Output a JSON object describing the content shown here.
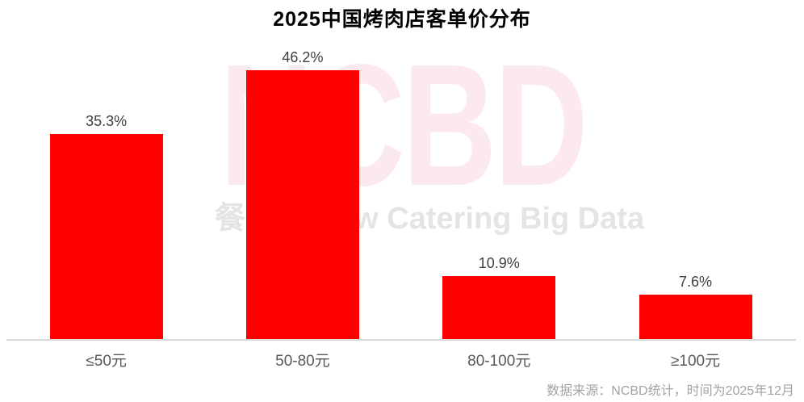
{
  "title": "2025中国烤肉店客单价分布",
  "watermark": {
    "brand": "NCBD",
    "subtitle": "餐宝典 New Catering Big Data"
  },
  "source_note": "数据来源：NCBD统计，时间为2025年12月",
  "colors": {
    "bar": "#fe0000",
    "title_text": "#000000",
    "value_label": "#404040",
    "category_label": "#595959",
    "axis_line": "#d9d9d9",
    "source_text": "#a3a3a3",
    "watermark_pink": "#fce9ed",
    "watermark_gray": "#e4e4e4",
    "background": "#ffffff"
  },
  "chart_data": {
    "type": "bar",
    "title": "2025中国烤肉店客单价分布",
    "categories": [
      "≤50元",
      "50-80元",
      "80-100元",
      "≥100元"
    ],
    "values": [
      35.3,
      46.2,
      10.9,
      7.6
    ],
    "value_labels": [
      "35.3%",
      "46.2%",
      "10.9%",
      "7.6%"
    ],
    "unit": "%",
    "xlabel": "",
    "ylabel": "",
    "ylim": [
      0,
      50
    ],
    "grid": false,
    "legend": false,
    "y_axis_visible": false,
    "x_axis_line": true,
    "data_labels_position": "above-bar"
  }
}
